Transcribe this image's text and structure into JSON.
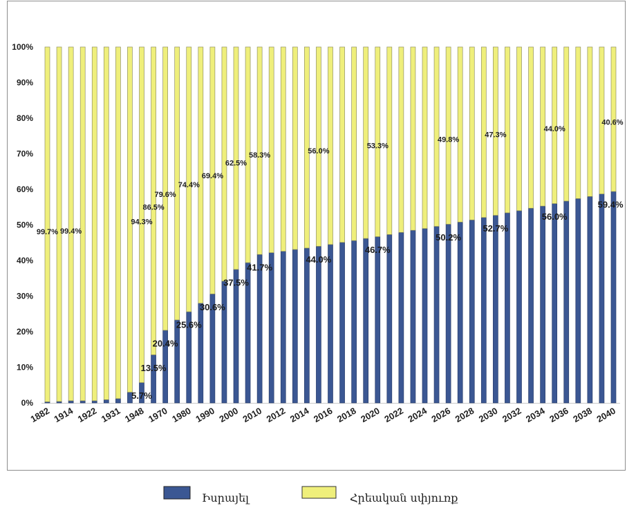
{
  "chart_data": {
    "type": "bar",
    "stacked": true,
    "categories": [
      "1882",
      "",
      "1914",
      "",
      "1922",
      "",
      "1931",
      "",
      "1948",
      "",
      "1970",
      "",
      "1980",
      "",
      "1990",
      "",
      "2000",
      "",
      "2010",
      "",
      "2012",
      "",
      "2014",
      "",
      "2016",
      "",
      "2018",
      "",
      "2020",
      "",
      "2022",
      "",
      "2024",
      "",
      "2026",
      "",
      "2028",
      "",
      "2030",
      "",
      "2032",
      "",
      "2034",
      "",
      "2036",
      "",
      "2038",
      "",
      "2040"
    ],
    "series": [
      {
        "name": "Իսրայել",
        "color": "#3b5793",
        "values": [
          0.3,
          0.4,
          0.6,
          0.6,
          0.6,
          0.9,
          1.2,
          3.0,
          5.7,
          13.5,
          20.4,
          23.3,
          25.6,
          28.0,
          30.6,
          34.2,
          37.5,
          39.4,
          41.7,
          42.2,
          42.6,
          43.1,
          43.5,
          44.0,
          44.5,
          45.1,
          45.6,
          46.2,
          46.7,
          47.3,
          47.9,
          48.5,
          49.0,
          49.6,
          50.2,
          50.8,
          51.4,
          52.1,
          52.7,
          53.4,
          54.0,
          54.7,
          55.3,
          56.0,
          56.7,
          57.4,
          58.0,
          58.7,
          59.4
        ]
      },
      {
        "name": "Հրեական սփյուռք",
        "color": "#efef7b",
        "values": [
          99.7,
          99.6,
          99.4,
          99.4,
          99.4,
          99.1,
          98.8,
          97.0,
          94.3,
          86.5,
          79.6,
          76.7,
          74.4,
          72.0,
          69.4,
          65.8,
          62.5,
          60.6,
          58.3,
          57.8,
          57.4,
          56.9,
          56.5,
          56.0,
          55.5,
          54.9,
          54.4,
          53.8,
          53.3,
          52.7,
          52.1,
          51.5,
          51.0,
          50.4,
          49.8,
          49.2,
          48.6,
          47.9,
          47.3,
          46.6,
          46.0,
          45.3,
          44.7,
          44.0,
          43.3,
          42.6,
          42.0,
          41.3,
          40.6
        ]
      }
    ],
    "ylim": [
      0,
      100
    ],
    "y_tick_labels": [
      "0%",
      "10%",
      "20%",
      "30%",
      "40%",
      "50%",
      "60%",
      "70%",
      "80%",
      "90%",
      "100%"
    ],
    "data_labels": [
      {
        "category_index": 0,
        "series": 1,
        "text": "99.7%"
      },
      {
        "category_index": 2,
        "series": 1,
        "text": "99.4%"
      },
      {
        "category_index": 8,
        "series": 1,
        "text": "94.3%"
      },
      {
        "category_index": 9,
        "series": 1,
        "text": "86.5%"
      },
      {
        "category_index": 10,
        "series": 1,
        "text": "79.6%"
      },
      {
        "category_index": 12,
        "series": 1,
        "text": "74.4%"
      },
      {
        "category_index": 14,
        "series": 1,
        "text": "69.4%"
      },
      {
        "category_index": 16,
        "series": 1,
        "text": "62.5%"
      },
      {
        "category_index": 18,
        "series": 1,
        "text": "58.3%"
      },
      {
        "category_index": 23,
        "series": 1,
        "text": "56.0%"
      },
      {
        "category_index": 28,
        "series": 1,
        "text": "53.3%"
      },
      {
        "category_index": 34,
        "series": 1,
        "text": "49.8%"
      },
      {
        "category_index": 38,
        "series": 1,
        "text": "47.3%"
      },
      {
        "category_index": 43,
        "series": 1,
        "text": "44.0%"
      },
      {
        "category_index": 48,
        "series": 1,
        "text": "40.6%"
      },
      {
        "category_index": 8,
        "series": 0,
        "text": "5.7%"
      },
      {
        "category_index": 9,
        "series": 0,
        "text": "13.5%"
      },
      {
        "category_index": 10,
        "series": 0,
        "text": "20.4%"
      },
      {
        "category_index": 12,
        "series": 0,
        "text": "25.6%"
      },
      {
        "category_index": 14,
        "series": 0,
        "text": "30.6%"
      },
      {
        "category_index": 16,
        "series": 0,
        "text": "37.5%"
      },
      {
        "category_index": 18,
        "series": 0,
        "text": "41.7%"
      },
      {
        "category_index": 23,
        "series": 0,
        "text": "44.0%"
      },
      {
        "category_index": 28,
        "series": 0,
        "text": "46.7%"
      },
      {
        "category_index": 34,
        "series": 0,
        "text": "50.2%"
      },
      {
        "category_index": 38,
        "series": 0,
        "text": "52.7%"
      },
      {
        "category_index": 43,
        "series": 0,
        "text": "56.0%"
      },
      {
        "category_index": 48,
        "series": 0,
        "text": "59.4%"
      }
    ],
    "grid": false,
    "legend": "bottom"
  }
}
